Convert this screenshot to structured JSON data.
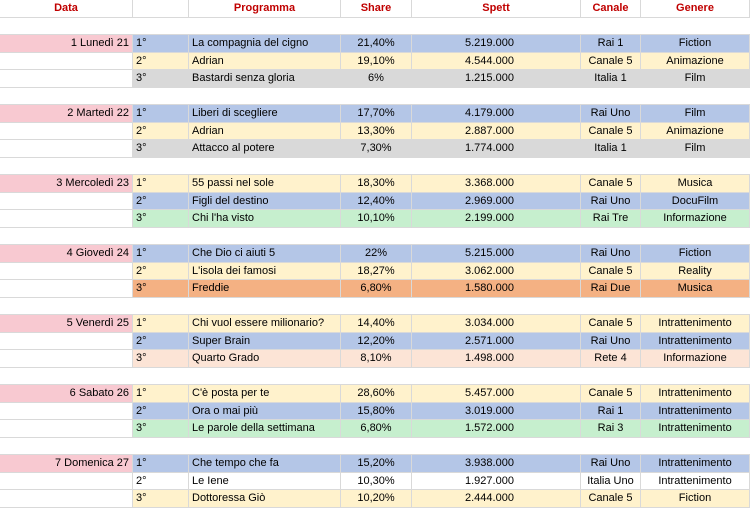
{
  "headers": {
    "data": "Data",
    "programma": "Programma",
    "share": "Share",
    "spett": "Spett",
    "canale": "Canale",
    "genere": "Genere"
  },
  "days": [
    {
      "label": "1 Lunedì 21",
      "rows": [
        {
          "rank": "1°",
          "programma": "La compagnia del cigno",
          "share": "21,40%",
          "spett": "5.219.000",
          "canale": "Rai 1",
          "genere": "Fiction",
          "color": "blue"
        },
        {
          "rank": "2°",
          "programma": "Adrian",
          "share": "19,10%",
          "spett": "4.544.000",
          "canale": "Canale 5",
          "genere": "Animazione",
          "color": "yellow"
        },
        {
          "rank": "3°",
          "programma": "Bastardi senza gloria",
          "share": "6%",
          "spett": "1.215.000",
          "canale": "Italia 1",
          "genere": "Film",
          "color": "gray"
        }
      ]
    },
    {
      "label": "2 Martedì 22",
      "rows": [
        {
          "rank": "1°",
          "programma": "Liberi di scegliere",
          "share": "17,70%",
          "spett": "4.179.000",
          "canale": "Rai Uno",
          "genere": "Film",
          "color": "blue"
        },
        {
          "rank": "2°",
          "programma": "Adrian",
          "share": "13,30%",
          "spett": "2.887.000",
          "canale": "Canale 5",
          "genere": "Animazione",
          "color": "yellow"
        },
        {
          "rank": "3°",
          "programma": "Attacco al potere",
          "share": "7,30%",
          "spett": "1.774.000",
          "canale": "Italia 1",
          "genere": "Film",
          "color": "gray"
        }
      ]
    },
    {
      "label": "3 Mercoledì 23",
      "rows": [
        {
          "rank": "1°",
          "programma": "55 passi nel sole",
          "share": "18,30%",
          "spett": "3.368.000",
          "canale": "Canale 5",
          "genere": "Musica",
          "color": "yellow"
        },
        {
          "rank": "2°",
          "programma": "Figli del destino",
          "share": "12,40%",
          "spett": "2.969.000",
          "canale": "Rai Uno",
          "genere": "DocuFilm",
          "color": "blue"
        },
        {
          "rank": "3°",
          "programma": "Chi l'ha visto",
          "share": "10,10%",
          "spett": "2.199.000",
          "canale": "Rai Tre",
          "genere": "Informazione",
          "color": "green"
        }
      ]
    },
    {
      "label": "4 Giovedì 24",
      "rows": [
        {
          "rank": "1°",
          "programma": "Che Dio ci aiuti 5",
          "share": "22%",
          "spett": "5.215.000",
          "canale": "Rai Uno",
          "genere": "Fiction",
          "color": "blue"
        },
        {
          "rank": "2°",
          "programma": "L'isola dei famosi",
          "share": "18,27%",
          "spett": "3.062.000",
          "canale": "Canale 5",
          "genere": "Reality",
          "color": "yellow"
        },
        {
          "rank": "3°",
          "programma": "Freddie",
          "share": "6,80%",
          "spett": "1.580.000",
          "canale": "Rai Due",
          "genere": "Musica",
          "color": "orange"
        }
      ]
    },
    {
      "label": "5 Venerdì 25",
      "rows": [
        {
          "rank": "1°",
          "programma": "Chi vuol essere milionario?",
          "share": "14,40%",
          "spett": "3.034.000",
          "canale": "Canale 5",
          "genere": "Intrattenimento",
          "color": "yellow"
        },
        {
          "rank": "2°",
          "programma": "Super Brain",
          "share": "12,20%",
          "spett": "2.571.000",
          "canale": "Rai Uno",
          "genere": "Intrattenimento",
          "color": "blue"
        },
        {
          "rank": "3°",
          "programma": "Quarto Grado",
          "share": "8,10%",
          "spett": "1.498.000",
          "canale": "Rete 4",
          "genere": "Informazione",
          "color": "peach"
        }
      ]
    },
    {
      "label": "6 Sabato 26",
      "rows": [
        {
          "rank": "1°",
          "programma": "C'è posta per te",
          "share": "28,60%",
          "spett": "5.457.000",
          "canale": "Canale 5",
          "genere": "Intrattenimento",
          "color": "yellow"
        },
        {
          "rank": "2°",
          "programma": "Ora o mai più",
          "share": "15,80%",
          "spett": "3.019.000",
          "canale": "Rai 1",
          "genere": "Intrattenimento",
          "color": "blue"
        },
        {
          "rank": "3°",
          "programma": "Le parole della settimana",
          "share": "6,80%",
          "spett": "1.572.000",
          "canale": "Rai 3",
          "genere": "Intrattenimento",
          "color": "green"
        }
      ]
    },
    {
      "label": "7 Domenica 27",
      "rows": [
        {
          "rank": "1°",
          "programma": "Che tempo che fa",
          "share": "15,20%",
          "spett": "3.938.000",
          "canale": "Rai Uno",
          "genere": "Intrattenimento",
          "color": "blue"
        },
        {
          "rank": "2°",
          "programma": "Le Iene",
          "share": "10,30%",
          "spett": "1.927.000",
          "canale": "Italia Uno",
          "genere": "Intrattenimento",
          "color": "none"
        },
        {
          "rank": "3°",
          "programma": "Dottoressa Giò",
          "share": "10,20%",
          "spett": "2.444.000",
          "canale": "Canale 5",
          "genere": "Fiction",
          "color": "yellow"
        }
      ]
    }
  ]
}
